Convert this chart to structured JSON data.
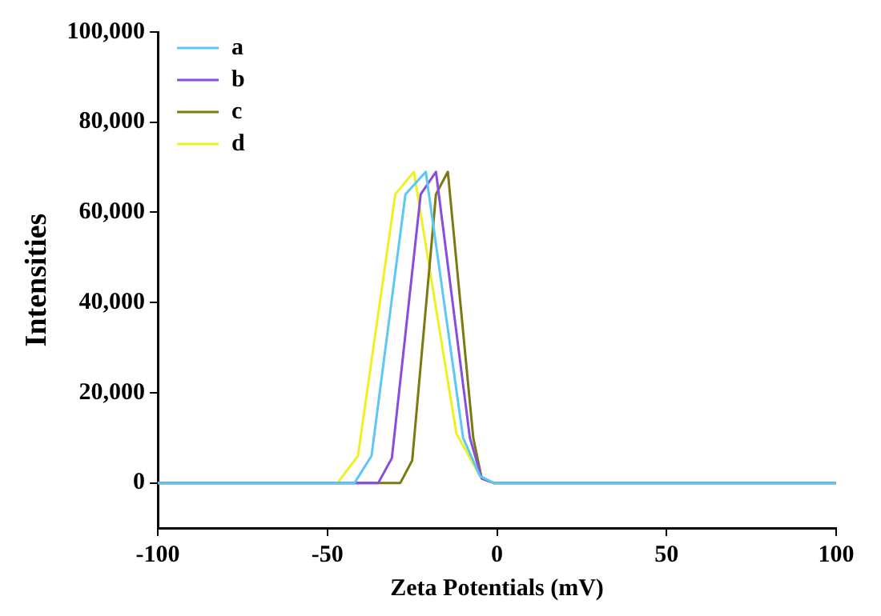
{
  "chart_data": {
    "type": "line",
    "xlabel": "Zeta Potentials (mV)",
    "ylabel": "Intensities",
    "xlim": [
      -100,
      100
    ],
    "xticks": [
      -100,
      -50,
      0,
      50,
      100
    ],
    "ylim": [
      -10000,
      100000
    ],
    "yticks": [
      {
        "value": 0,
        "label": "0"
      },
      {
        "value": 20000,
        "label": "20,000"
      },
      {
        "value": 40000,
        "label": "40,000"
      },
      {
        "value": 60000,
        "label": "60,000"
      },
      {
        "value": 80000,
        "label": "80,000"
      },
      {
        "value": 100000,
        "label": "100,000"
      }
    ],
    "legend": "top left",
    "grid": false,
    "marker": "none",
    "line_style": "solid",
    "series": [
      {
        "name": "a",
        "color": "#5bc8f5",
        "x": [
          -100,
          -42,
          -37,
          -27,
          -21,
          -10,
          -5,
          -1,
          100
        ],
        "values": [
          0,
          0,
          6000,
          64000,
          69000,
          10000,
          1500,
          0,
          0
        ]
      },
      {
        "name": "b",
        "color": "#8a4be0",
        "x": [
          -100,
          -35,
          -31,
          -22.5,
          -18,
          -8,
          -4.5,
          -1,
          100
        ],
        "values": [
          0,
          0,
          5500,
          64000,
          69000,
          10000,
          1000,
          0,
          0
        ]
      },
      {
        "name": "c",
        "color": "#7a7a10",
        "x": [
          -100,
          -28.5,
          -25,
          -18,
          -14.5,
          -7,
          -4.5,
          -1,
          100
        ],
        "values": [
          0,
          0,
          5000,
          64000,
          69000,
          10000,
          1000,
          0,
          0
        ]
      },
      {
        "name": "d",
        "color": "#f0f020",
        "x": [
          -100,
          -47,
          -41,
          -30,
          -24.5,
          -12,
          -5,
          -1,
          100
        ],
        "values": [
          0,
          0,
          6000,
          64000,
          69000,
          11000,
          1500,
          0,
          0
        ]
      }
    ]
  }
}
